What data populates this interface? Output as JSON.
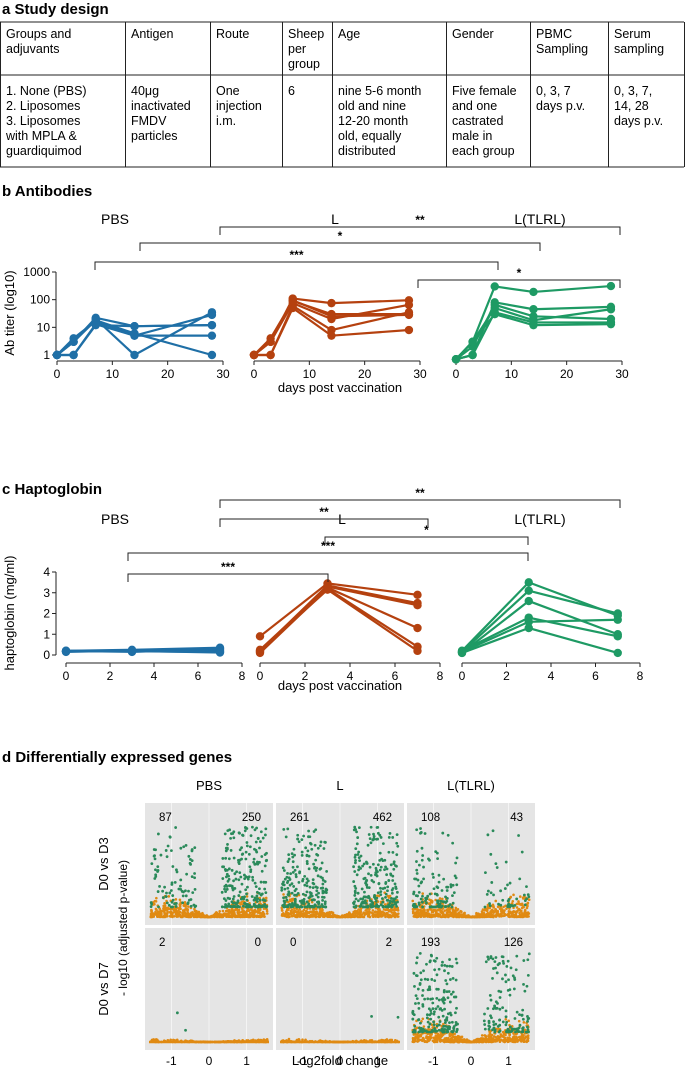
{
  "colors": {
    "pbs": "#1f6fa6",
    "l": "#b5410f",
    "tlrl": "#1e9a64",
    "volcano_bg": "#e5e5e5",
    "volcano_low": "#e08a12",
    "volcano_high": "#2a8a5a"
  },
  "section_a": {
    "title": "a Study design",
    "headers": [
      [
        "Groups and",
        "adjuvants"
      ],
      [
        "Antigen"
      ],
      [
        "Route"
      ],
      [
        "Sheep",
        "per",
        "group"
      ],
      [
        "Age"
      ],
      [
        "Gender"
      ],
      [
        "PBMC",
        "Sampling"
      ],
      [
        "Serum",
        "sampling"
      ]
    ],
    "cells": [
      [
        "1. None (PBS)",
        "2. Liposomes",
        "3. Liposomes",
        "with MPLA &",
        "guardiquimod"
      ],
      [
        "40μg",
        "inactivated",
        "FMDV",
        "particles"
      ],
      [
        "One",
        "injection",
        "i.m."
      ],
      [
        "6"
      ],
      [
        "nine 5-6 month",
        "old and nine",
        "12-20 month",
        "old, equally",
        "distributed"
      ],
      [
        "Five female",
        "and one",
        "castrated",
        "male in",
        "each group"
      ],
      [
        "0, 3, 7",
        "days p.v."
      ],
      [
        "0, 3, 7,",
        "14, 28",
        "days p.v."
      ]
    ]
  },
  "section_b": {
    "title": "b Antibodies",
    "ylabel": "Ab titer (log10)",
    "xlabel": "days post vaccination",
    "yticks": [
      "1",
      "10",
      "100",
      "1000"
    ],
    "xticks": [
      "0",
      "10",
      "20",
      "30"
    ],
    "panels": [
      "PBS",
      "L",
      "L(TLRL)"
    ],
    "brackets": [
      {
        "from": 1,
        "to": 2,
        "label": "**"
      },
      {
        "from": 0,
        "to": 2,
        "label": "*"
      },
      {
        "from": 0,
        "to": 1,
        "label": "***"
      },
      {
        "from": 1,
        "to": 2,
        "label": "*"
      }
    ]
  },
  "section_c": {
    "title": "c Haptoglobin",
    "ylabel": "haptoglobin (mg/ml)",
    "xlabel": "days post vaccination",
    "yticks": [
      "0",
      "1",
      "2",
      "3",
      "4"
    ],
    "xticks": [
      "0",
      "2",
      "4",
      "6",
      "8"
    ],
    "panels": [
      "PBS",
      "L",
      "L(TLRL)"
    ],
    "brackets": [
      {
        "label": "**"
      },
      {
        "label": "**"
      },
      {
        "label": "*"
      },
      {
        "label": "***"
      },
      {
        "label": "***"
      }
    ]
  },
  "section_d": {
    "title": "d Differentially expressed genes",
    "columns": [
      "PBS",
      "L",
      "L(TLRL)"
    ],
    "rows": [
      "D0 vs D3",
      "D0 vs D7"
    ],
    "ylabel": "- log10 (adjusted p-value)",
    "xlabel": "Log2fold change",
    "xticks": [
      "-1",
      "0",
      "1"
    ],
    "counts": [
      [
        [
          "87",
          "250"
        ],
        [
          "261",
          "462"
        ],
        [
          "108",
          "43"
        ]
      ],
      [
        [
          "2",
          "0"
        ],
        [
          "0",
          "2"
        ],
        [
          "193",
          "126"
        ]
      ]
    ]
  },
  "chart_data": [
    {
      "type": "line",
      "title": "b Antibodies",
      "xlabel": "days post vaccination",
      "ylabel": "Ab titer (log10)",
      "yscale": "log",
      "ylim": [
        1,
        1000
      ],
      "xlim": [
        0,
        30
      ],
      "panels": [
        {
          "name": "PBS",
          "x": [
            0,
            3,
            7,
            14,
            28
          ],
          "series": [
            {
              "values": [
                1,
                3,
                20,
                1,
                35
              ]
            },
            {
              "values": [
                1,
                3,
                22,
                11,
                12
              ]
            },
            {
              "values": [
                1,
                4,
                17,
                5,
                5
              ]
            },
            {
              "values": [
                1,
                1,
                13,
                5,
                28
              ]
            },
            {
              "values": [
                1,
                3,
                18,
                6,
                1
              ]
            },
            {
              "values": [
                1,
                1,
                12,
                11,
                12
              ]
            }
          ]
        },
        {
          "name": "L",
          "x": [
            0,
            3,
            7,
            14,
            28
          ],
          "series": [
            {
              "values": [
                1,
                3,
                110,
                75,
                95
              ]
            },
            {
              "values": [
                1,
                4,
                90,
                30,
                30
              ]
            },
            {
              "values": [
                1,
                3,
                75,
                20,
                65
              ]
            },
            {
              "values": [
                1,
                1,
                60,
                8,
                35
              ]
            },
            {
              "values": [
                1,
                1,
                50,
                5,
                8
              ]
            },
            {
              "values": [
                1,
                3,
                95,
                25,
                28
              ]
            }
          ]
        },
        {
          "name": "L(TLRL)",
          "x": [
            0,
            3,
            7,
            14,
            28
          ],
          "series": [
            {
              "values": [
                0.7,
                3,
                300,
                190,
                310
              ]
            },
            {
              "values": [
                0.7,
                1,
                80,
                45,
                55
              ]
            },
            {
              "values": [
                0.7,
                2,
                65,
                25,
                20
              ]
            },
            {
              "values": [
                0.7,
                3,
                50,
                18,
                45
              ]
            },
            {
              "values": [
                0.7,
                1,
                35,
                15,
                15
              ]
            },
            {
              "values": [
                0.7,
                3,
                30,
                12,
                13
              ]
            }
          ]
        }
      ]
    },
    {
      "type": "line",
      "title": "c Haptoglobin",
      "xlabel": "days post vaccination",
      "ylabel": "haptoglobin (mg/ml)",
      "ylim": [
        0,
        4
      ],
      "xlim": [
        0,
        8
      ],
      "panels": [
        {
          "name": "PBS",
          "x": [
            0,
            3,
            7
          ],
          "series": [
            {
              "values": [
                0.2,
                0.25,
                0.35
              ]
            },
            {
              "values": [
                0.18,
                0.2,
                0.25
              ]
            },
            {
              "values": [
                0.2,
                0.15,
                0.3
              ]
            },
            {
              "values": [
                0.15,
                0.22,
                0.2
              ]
            },
            {
              "values": [
                0.18,
                0.18,
                0.15
              ]
            },
            {
              "values": [
                0.2,
                0.2,
                0.12
              ]
            }
          ]
        },
        {
          "name": "L",
          "x": [
            0,
            3,
            7
          ],
          "series": [
            {
              "values": [
                0.9,
                3.45,
                2.9
              ]
            },
            {
              "values": [
                0.2,
                3.35,
                2.5
              ]
            },
            {
              "values": [
                0.15,
                3.3,
                2.4
              ]
            },
            {
              "values": [
                0.25,
                3.25,
                1.3
              ]
            },
            {
              "values": [
                0.1,
                3.2,
                0.4
              ]
            },
            {
              "values": [
                0.2,
                3.15,
                0.2
              ]
            }
          ]
        },
        {
          "name": "L(TLRL)",
          "x": [
            0,
            3,
            7
          ],
          "series": [
            {
              "values": [
                0.2,
                3.5,
                1.9
              ]
            },
            {
              "values": [
                0.15,
                3.1,
                2.0
              ]
            },
            {
              "values": [
                0.1,
                2.6,
                1.0
              ]
            },
            {
              "values": [
                0.2,
                1.8,
                0.9
              ]
            },
            {
              "values": [
                0.15,
                1.6,
                1.7
              ]
            },
            {
              "values": [
                0.1,
                1.3,
                0.1
              ]
            }
          ]
        }
      ]
    },
    {
      "type": "scatter",
      "title": "d Differentially expressed genes",
      "xlabel": "Log2fold change",
      "ylabel": "- log10 (adjusted p-value)",
      "xlim": [
        -1.7,
        1.7
      ],
      "panels": [
        {
          "column": "PBS",
          "row": "D0 vs D3",
          "down": 87,
          "up": 250
        },
        {
          "column": "L",
          "row": "D0 vs D3",
          "down": 261,
          "up": 462
        },
        {
          "column": "L(TLRL)",
          "row": "D0 vs D3",
          "down": 108,
          "up": 43
        },
        {
          "column": "PBS",
          "row": "D0 vs D7",
          "down": 2,
          "up": 0
        },
        {
          "column": "L",
          "row": "D0 vs D7",
          "down": 0,
          "up": 2
        },
        {
          "column": "L(TLRL)",
          "row": "D0 vs D7",
          "down": 193,
          "up": 126
        }
      ]
    }
  ]
}
